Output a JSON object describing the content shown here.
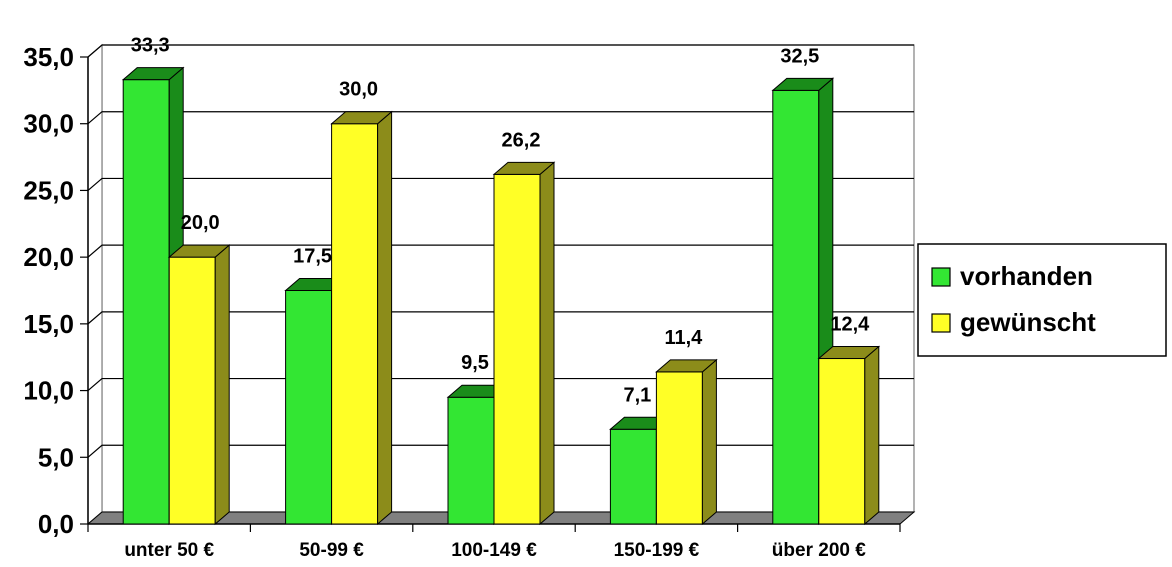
{
  "chart_data": {
    "type": "bar",
    "title": "",
    "xlabel": "",
    "ylabel": "",
    "categories": [
      "unter 50 €",
      "50-99 €",
      "100-149 €",
      "150-199 €",
      "über 200 €"
    ],
    "series": [
      {
        "name": "vorhanden",
        "values": [
          33.3,
          17.5,
          9.5,
          7.1,
          32.5
        ],
        "labels": [
          "33,3",
          "17,5",
          "9,5",
          "7,1",
          "32,5"
        ],
        "color": "#33e633",
        "side_color": "#1a8c1a"
      },
      {
        "name": "gewünscht",
        "values": [
          20.0,
          30.0,
          26.2,
          11.4,
          12.4
        ],
        "labels": [
          "20,0",
          "30,0",
          "26,2",
          "11,4",
          "12,4"
        ],
        "color": "#ffff26",
        "side_color": "#8c8c1a"
      }
    ],
    "ylim": [
      0,
      35
    ],
    "yticks": [
      0,
      5,
      10,
      15,
      20,
      25,
      30,
      35
    ],
    "ytick_labels": [
      "0,0",
      "5,0",
      "10,0",
      "15,0",
      "20,0",
      "25,0",
      "30,0",
      "35,0"
    ],
    "grid": true,
    "three_d": true,
    "legend_position": "right"
  }
}
